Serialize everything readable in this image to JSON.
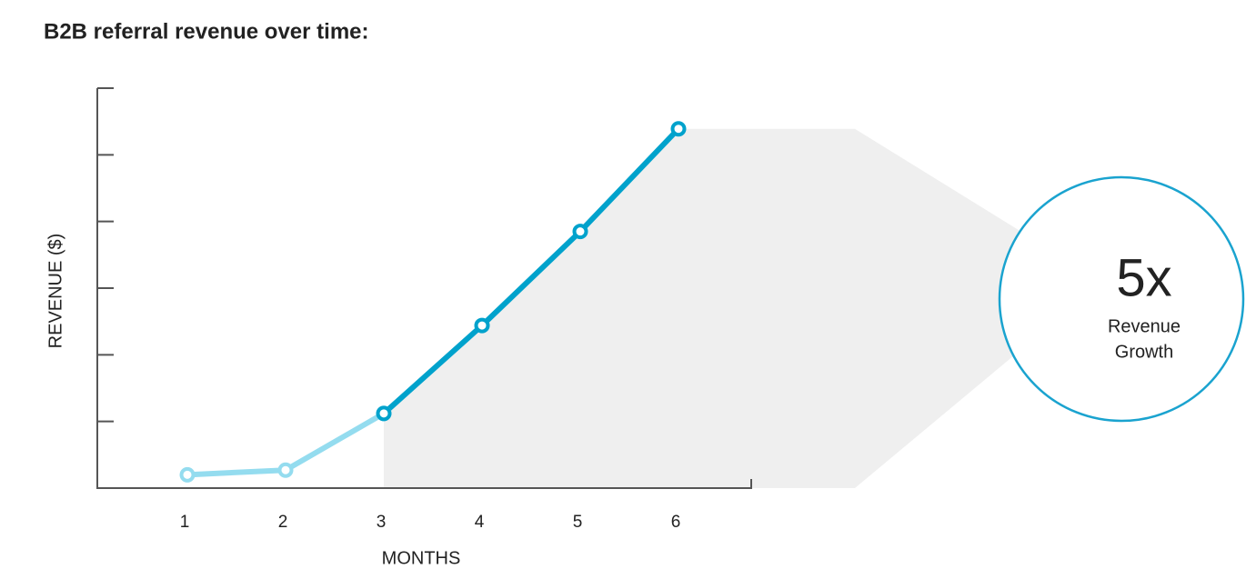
{
  "chart_data": {
    "type": "line",
    "title": "B2B referral revenue over time:",
    "x_label": "MONTHS",
    "y_label": "REVENUE ($)",
    "categories": [
      "1",
      "2",
      "3",
      "4",
      "5",
      "6"
    ],
    "series": [
      {
        "color": "#94dcef",
        "values": [
          0.2,
          0.27,
          1.12,
          null,
          null,
          null
        ]
      },
      {
        "color": "#00a2cc",
        "values": [
          null,
          null,
          1.12,
          2.44,
          3.85,
          5.39
        ]
      }
    ],
    "ylim": [
      0,
      6
    ],
    "yticks": [
      0,
      1,
      2,
      3,
      4,
      5,
      6
    ],
    "callout": {
      "value": "5x",
      "lines": [
        "Revenue",
        "Growth"
      ],
      "color": "#1aa3cf"
    }
  }
}
